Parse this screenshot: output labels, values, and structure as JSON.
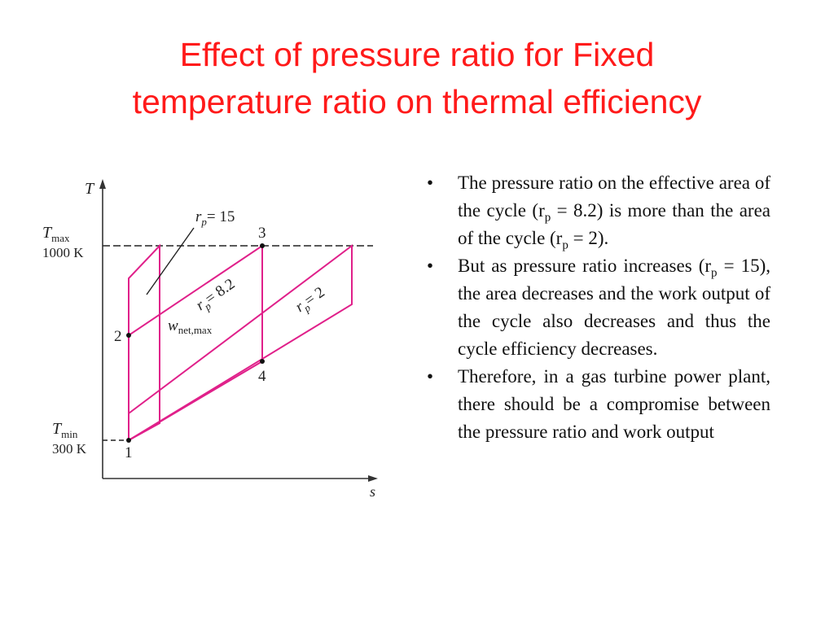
{
  "title": {
    "line1": "Effect of pressure ratio for Fixed",
    "line2": "temperature ratio on thermal efficiency"
  },
  "diagram": {
    "axis_t": "T",
    "axis_s": "s",
    "tmax_sym": "T",
    "tmax_sub": "max",
    "tmax_val": "1000 K",
    "tmin_sym": "T",
    "tmin_sub": "min",
    "tmin_val": "300 K",
    "rp15_r": "r",
    "rp15_sub": "p",
    "rp15_val": "= 15",
    "rp82_label": "r",
    "rp82_sub": "p",
    "rp82_val": "= 8.2",
    "rp2_label": "r",
    "rp2_sub": "p",
    "rp2_val": "= 2",
    "wnet_w": "w",
    "wnet_sub": "net,max",
    "state1": "1",
    "state2": "2",
    "state3": "3",
    "state4": "4",
    "colors": {
      "cycle": "#e0208a",
      "axes": "#333333",
      "text": "#222222"
    }
  },
  "bullets": [
    {
      "symbol": "•",
      "before": "The pressure ratio on the effective area of the  cycle (r",
      "sub": "p",
      "after": " = 8.2) is more than the area of the cycle (r",
      "sub2": "p",
      "after2": " = 2)."
    },
    {
      "symbol": "•",
      "before": "But as pressure ratio increases (r",
      "sub": "p",
      "after": " = 15), the area decreases and the work output of the cycle also decreases and thus the cycle efficiency decreases."
    },
    {
      "symbol": "•",
      "text": "Therefore, in a gas turbine power plant, there should be a compromise between the pressure ratio and work output"
    }
  ]
}
